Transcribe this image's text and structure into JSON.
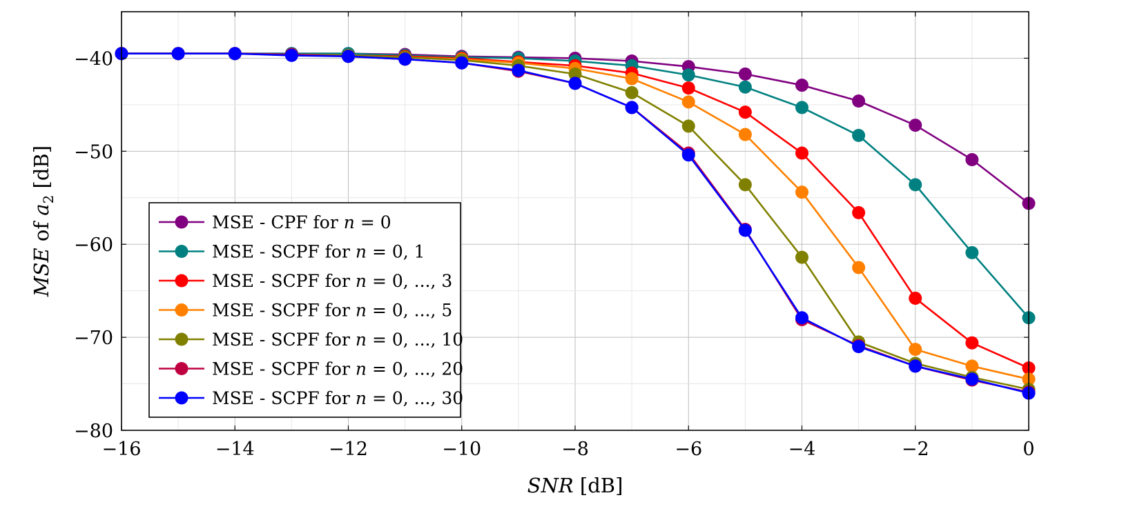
{
  "chart_data": {
    "type": "line",
    "xlabel": {
      "var": "SNR",
      "unit": " [dB]"
    },
    "ylabel": {
      "var": "MSE",
      "mid": " of ",
      "sym": "a",
      "sub": "2",
      "unit": " [dB]"
    },
    "xlim": [
      -16,
      0
    ],
    "ylim": [
      -80,
      -35
    ],
    "xticks": [
      -16,
      -14,
      -12,
      -10,
      -8,
      -6,
      -4,
      -2,
      0
    ],
    "xtick_labels": [
      "−16",
      "−14",
      "−12",
      "−10",
      "−8",
      "−6",
      "−4",
      "−2",
      "0"
    ],
    "yticks": [
      -80,
      -70,
      -60,
      -50,
      -40
    ],
    "ytick_labels": [
      "−80",
      "−70",
      "−60",
      "−50",
      "−40"
    ],
    "grid": true,
    "legend_position": "bottom-left",
    "x": [
      -16,
      -15,
      -14,
      -13,
      -12,
      -11,
      -10,
      -9,
      -8,
      -7,
      -6,
      -5,
      -4,
      -3,
      -2,
      -1,
      0
    ],
    "series": [
      {
        "name": "MSE - CPF for n = 0",
        "legend": {
          "prefix": "MSE - CPF for ",
          "var": "n",
          "rest": " = 0"
        },
        "color": "#800080",
        "values": [
          -39.5,
          -39.5,
          -39.5,
          -39.5,
          -39.5,
          -39.6,
          -39.8,
          -39.9,
          -40.0,
          -40.3,
          -40.9,
          -41.7,
          -42.9,
          -44.6,
          -47.2,
          -50.9,
          -55.6
        ]
      },
      {
        "name": "MSE - SCPF for n = 0,1",
        "legend": {
          "prefix": "MSE - SCPF for ",
          "var": "n",
          "rest": " = 0, 1"
        },
        "color": "#008080",
        "values": [
          -39.5,
          -39.5,
          -39.5,
          -39.5,
          -39.5,
          -39.7,
          -39.9,
          -40.0,
          -40.3,
          -40.8,
          -41.8,
          -43.1,
          -45.3,
          -48.3,
          -53.6,
          -60.9,
          -67.9
        ]
      },
      {
        "name": "MSE - SCPF for n = 0,...,3",
        "legend": {
          "prefix": "MSE - SCPF for ",
          "var": "n",
          "rest": " = 0, ..., 3"
        },
        "color": "#ff0000",
        "values": [
          -39.5,
          -39.5,
          -39.5,
          -39.6,
          -39.7,
          -39.8,
          -40.0,
          -40.4,
          -40.8,
          -41.6,
          -43.2,
          -45.8,
          -50.2,
          -56.6,
          -65.8,
          -70.6,
          -73.3
        ]
      },
      {
        "name": "MSE - SCPF for n = 0,...,5",
        "legend": {
          "prefix": "MSE - SCPF for ",
          "var": "n",
          "rest": " = 0, ..., 5"
        },
        "color": "#ff8000",
        "values": [
          -39.5,
          -39.5,
          -39.5,
          -39.6,
          -39.7,
          -39.9,
          -40.1,
          -40.5,
          -41.1,
          -42.2,
          -44.7,
          -48.2,
          -54.4,
          -62.5,
          -71.3,
          -73.1,
          -74.5
        ]
      },
      {
        "name": "MSE - SCPF for n = 0,...,10",
        "legend": {
          "prefix": "MSE - SCPF for ",
          "var": "n",
          "rest": " = 0, ..., 10"
        },
        "color": "#808000",
        "values": [
          -39.5,
          -39.5,
          -39.5,
          -39.6,
          -39.7,
          -39.9,
          -40.2,
          -40.8,
          -41.7,
          -43.7,
          -47.3,
          -53.6,
          -61.4,
          -70.5,
          -72.8,
          -74.3,
          -75.6
        ]
      },
      {
        "name": "MSE - SCPF for n = 0,...,20",
        "legend": {
          "prefix": "MSE - SCPF for ",
          "var": "n",
          "rest": " = 0, ..., 20"
        },
        "color": "#bf0040",
        "values": [
          -39.5,
          -39.5,
          -39.5,
          -39.6,
          -39.8,
          -40.1,
          -40.5,
          -41.4,
          -42.7,
          -45.3,
          -50.2,
          -58.4,
          -68.1,
          -70.9,
          -73.1,
          -74.6,
          -75.9
        ]
      },
      {
        "name": "MSE - SCPF for n = 0,...,30",
        "legend": {
          "prefix": "MSE - SCPF for ",
          "var": "n",
          "rest": " = 0, ..., 30"
        },
        "color": "#0000ff",
        "values": [
          -39.5,
          -39.5,
          -39.5,
          -39.7,
          -39.8,
          -40.1,
          -40.5,
          -41.3,
          -42.7,
          -45.3,
          -50.4,
          -58.5,
          -67.9,
          -71.0,
          -73.1,
          -74.5,
          -76.0
        ]
      }
    ]
  }
}
